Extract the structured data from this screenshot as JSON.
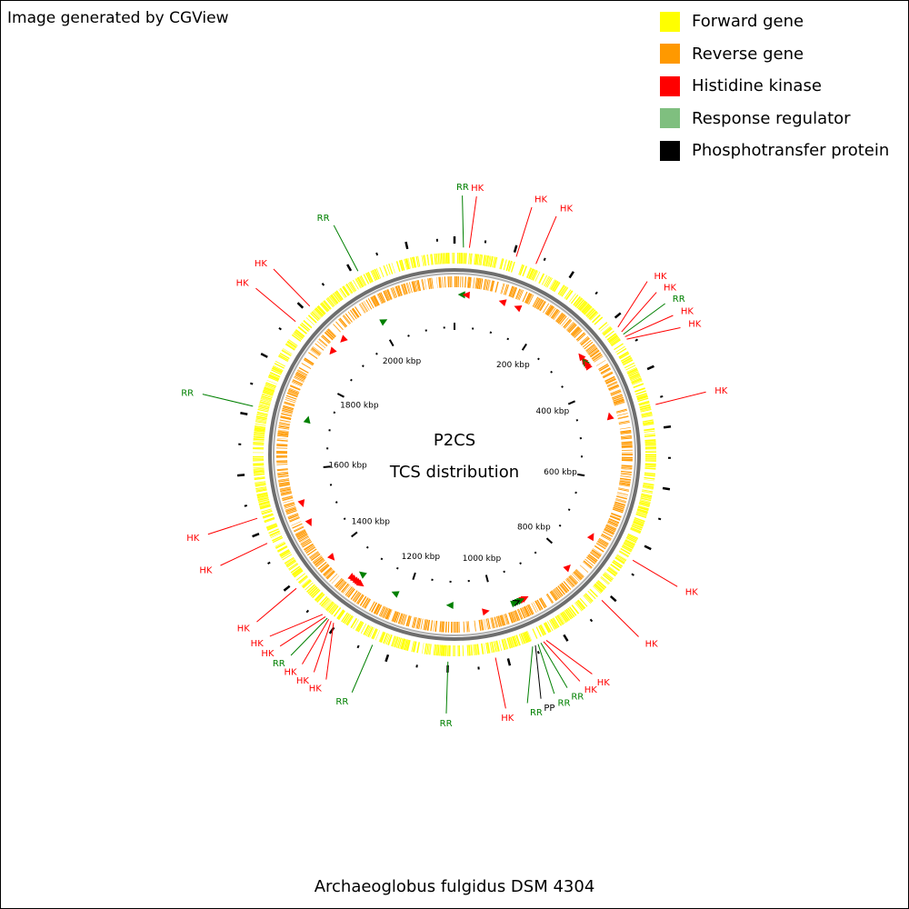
{
  "credit": "Image generated by CGView",
  "legend": {
    "items": [
      {
        "label": "Forward gene",
        "color": "#ffff00"
      },
      {
        "label": "Reverse gene",
        "color": "#ff9900"
      },
      {
        "label": "Histidine kinase",
        "color": "#ff0000"
      },
      {
        "label": "Response regulator",
        "color": "#7fbf7f"
      },
      {
        "label": "Phosphotransfer protein",
        "color": "#000000"
      }
    ]
  },
  "map": {
    "title_line1": "P2CS",
    "title_line2": "TCS distribution",
    "organism": "Archaeoglobus fulgidus DSM 4304",
    "genome_length_kbp": 2178,
    "kbp_labels": [
      {
        "text": "200 kbp",
        "kbp": 200
      },
      {
        "text": "400 kbp",
        "kbp": 400
      },
      {
        "text": "600 kbp",
        "kbp": 600
      },
      {
        "text": "800 kbp",
        "kbp": 800
      },
      {
        "text": "1000 kbp",
        "kbp": 1000
      },
      {
        "text": "1200 kbp",
        "kbp": 1200
      },
      {
        "text": "1400 kbp",
        "kbp": 1400
      },
      {
        "text": "1600 kbp",
        "kbp": 1600
      },
      {
        "text": "1800 kbp",
        "kbp": 1800
      },
      {
        "text": "2000 kbp",
        "kbp": 2000
      }
    ],
    "colors": {
      "forward": "#ffff00",
      "reverse": "#ff9900",
      "backbone": "#808080",
      "hk": "#ff0000",
      "rr": "#008000",
      "pp": "#000000"
    },
    "features": [
      {
        "type": "RR",
        "label": "RR",
        "kbp": 15,
        "strand": "reverse"
      },
      {
        "type": "HK",
        "label": "HK",
        "kbp": 25,
        "strand": "reverse"
      },
      {
        "type": "HK",
        "label": "HK",
        "kbp": 105,
        "strand": "reverse"
      },
      {
        "type": "HK",
        "label": "HK",
        "kbp": 140,
        "strand": "reverse"
      },
      {
        "type": "HK",
        "label": "HK",
        "kbp": 315,
        "strand": "reverse"
      },
      {
        "type": "HK",
        "label": "HK",
        "kbp": 325,
        "strand": "reverse"
      },
      {
        "type": "RR",
        "label": "RR",
        "kbp": 330,
        "strand": "reverse"
      },
      {
        "type": "HK",
        "label": "HK",
        "kbp": 335,
        "strand": "reverse"
      },
      {
        "type": "HK",
        "label": "HK",
        "kbp": 340,
        "strand": "reverse"
      },
      {
        "type": "HK",
        "label": "HK",
        "kbp": 460,
        "strand": "reverse"
      },
      {
        "type": "HK",
        "label": "HK",
        "kbp": 730,
        "strand": "reverse"
      },
      {
        "type": "HK",
        "label": "HK",
        "kbp": 815,
        "strand": "reverse"
      },
      {
        "type": "HK",
        "label": "HK",
        "kbp": 930,
        "strand": "reverse"
      },
      {
        "type": "HK",
        "label": "HK",
        "kbp": 935,
        "strand": "reverse"
      },
      {
        "type": "RR",
        "label": "RR",
        "kbp": 940,
        "strand": "reverse"
      },
      {
        "type": "RR",
        "label": "RR",
        "kbp": 945,
        "strand": "reverse"
      },
      {
        "type": "PP",
        "label": "PP",
        "kbp": 950,
        "strand": "reverse"
      },
      {
        "type": "RR",
        "label": "RR",
        "kbp": 955,
        "strand": "reverse"
      },
      {
        "type": "HK",
        "label": "HK",
        "kbp": 1020,
        "strand": "reverse"
      },
      {
        "type": "RR",
        "label": "RR",
        "kbp": 1100,
        "strand": "forward"
      },
      {
        "type": "RR",
        "label": "RR",
        "kbp": 1230,
        "strand": "forward"
      },
      {
        "type": "HK",
        "label": "HK",
        "kbp": 1305,
        "strand": "reverse"
      },
      {
        "type": "HK",
        "label": "HK",
        "kbp": 1310,
        "strand": "reverse"
      },
      {
        "type": "HK",
        "label": "HK",
        "kbp": 1315,
        "strand": "reverse"
      },
      {
        "type": "RR",
        "label": "RR",
        "kbp": 1318,
        "strand": "forward"
      },
      {
        "type": "HK",
        "label": "HK",
        "kbp": 1322,
        "strand": "reverse"
      },
      {
        "type": "HK",
        "label": "HK",
        "kbp": 1328,
        "strand": "reverse"
      },
      {
        "type": "HK",
        "label": "HK",
        "kbp": 1390,
        "strand": "reverse"
      },
      {
        "type": "HK",
        "label": "HK",
        "kbp": 1480,
        "strand": "reverse"
      },
      {
        "type": "HK",
        "label": "HK",
        "kbp": 1525,
        "strand": "reverse"
      },
      {
        "type": "RR",
        "label": "RR",
        "kbp": 1715,
        "strand": "forward"
      },
      {
        "type": "HK",
        "label": "HK",
        "kbp": 1875,
        "strand": "reverse"
      },
      {
        "type": "HK",
        "label": "HK",
        "kbp": 1910,
        "strand": "reverse"
      },
      {
        "type": "RR",
        "label": "RR",
        "kbp": 2010,
        "strand": "forward"
      }
    ]
  }
}
